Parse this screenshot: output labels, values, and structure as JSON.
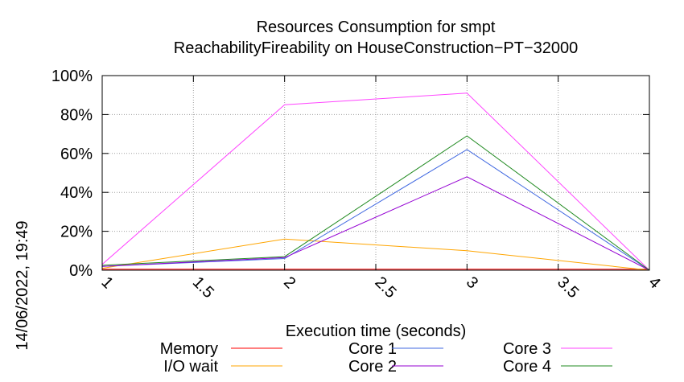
{
  "chart_data": {
    "type": "line",
    "title": "Resources Consumption for smpt",
    "subtitle": "ReachabilityFireability on HouseConstruction−PT−32000",
    "xlabel": "Execution time (seconds)",
    "ylabel": "",
    "timestamp": "14/06/2022, 19:49",
    "xlim": [
      1,
      4
    ],
    "ylim": [
      0,
      100
    ],
    "x_ticks": [
      "1",
      "1.5",
      "2",
      "2.5",
      "3",
      "3.5",
      "4"
    ],
    "y_ticks": [
      "0%",
      "20%",
      "40%",
      "60%",
      "80%",
      "100%"
    ],
    "grid": true,
    "legend_position": "bottom",
    "x": [
      1,
      2,
      3,
      4
    ],
    "series": [
      {
        "name": "Memory",
        "color": "#ff0000",
        "values": [
          0.5,
          0.5,
          0.5,
          0.5
        ]
      },
      {
        "name": "I/O wait",
        "color": "#ffa500",
        "values": [
          1,
          16,
          10,
          0
        ]
      },
      {
        "name": "Core 1",
        "color": "#4169e1",
        "values": [
          2,
          6,
          62,
          0
        ]
      },
      {
        "name": "Core 2",
        "color": "#9400d3",
        "values": [
          2,
          6.5,
          48,
          0
        ]
      },
      {
        "name": "Core 3",
        "color": "#ff44ff",
        "values": [
          3,
          85,
          91,
          0
        ]
      },
      {
        "name": "Core 4",
        "color": "#228b22",
        "values": [
          2.5,
          7,
          69,
          0
        ]
      }
    ]
  }
}
